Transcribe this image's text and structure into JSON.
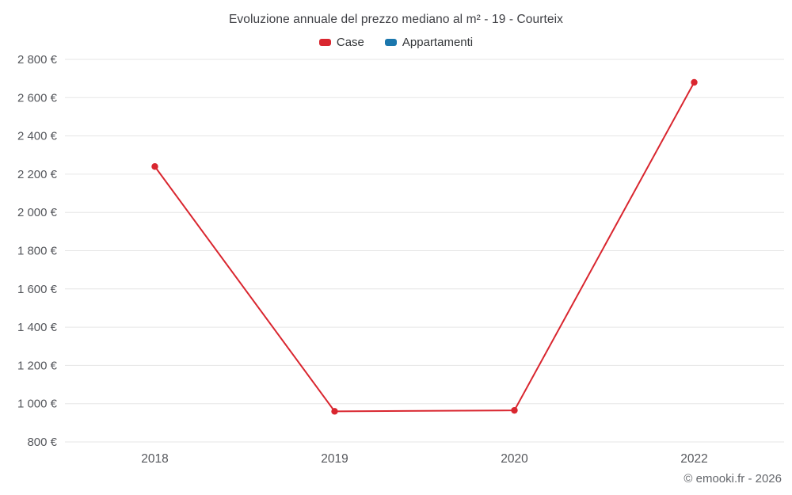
{
  "header": {
    "title": "Evoluzione annuale del prezzo mediano al m² - 19 - Courteix"
  },
  "footer": {
    "attribution": "© emooki.fr - 2026"
  },
  "chart_data": {
    "type": "line",
    "title": "Evoluzione annuale del prezzo mediano al m² - 19 - Courteix",
    "categories": [
      "2018",
      "2019",
      "2020",
      "2022"
    ],
    "series": [
      {
        "name": "Case",
        "color": "#d9262f",
        "values": [
          2240,
          960,
          965,
          2680
        ],
        "has_data": true
      },
      {
        "name": "Appartamenti",
        "color": "#1b77ad",
        "values": [],
        "has_data": false
      }
    ],
    "xlabel": "",
    "ylabel": "",
    "ylim": [
      800,
      2800
    ],
    "ytick_step": 200,
    "ytick_labels": [
      "800 €",
      "1 000 €",
      "1 200 €",
      "1 400 €",
      "1 600 €",
      "1 800 €",
      "2 000 €",
      "2 200 €",
      "2 400 €",
      "2 600 €",
      "2 800 €"
    ],
    "grid": true,
    "legend_position": "top",
    "colors": {
      "grid": "#e6e6e6",
      "axis_text": "#55575c",
      "title_text": "#3f4045"
    }
  }
}
